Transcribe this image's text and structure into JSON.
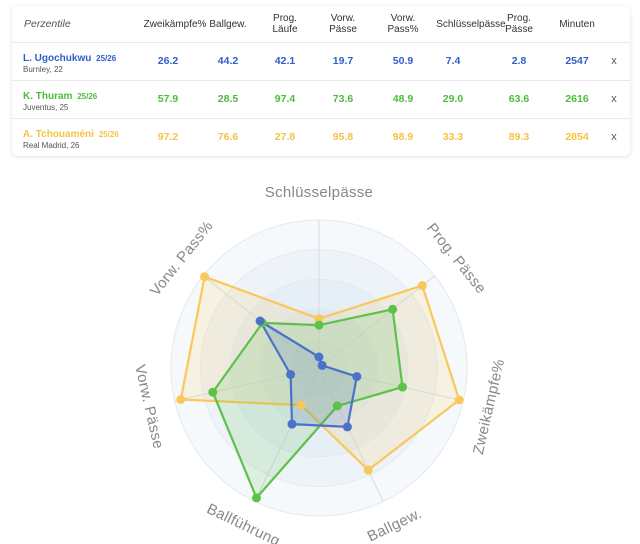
{
  "table": {
    "header_first": "Perzentile",
    "columns": [
      "Zweikämpfe%",
      "Ballgew.",
      "Prog.\nLäufe",
      "Vorw.\nPässe",
      "Vorw.\nPass%",
      "Schlüsselpässe",
      "Prog.\nPässe",
      "Minuten"
    ],
    "remove_label": "x",
    "rows": [
      {
        "name": "L. Ugochukwu",
        "season": "25/26",
        "meta": "Burnley, 22",
        "color": "#2f5fc8",
        "values": [
          "26.2",
          "44.2",
          "42.1",
          "19.7",
          "50.9",
          "7.4",
          "2.8",
          "2547"
        ]
      },
      {
        "name": "K. Thuram",
        "season": "25/26",
        "meta": "Juventus, 25",
        "color": "#4cbc3c",
        "values": [
          "57.9",
          "28.5",
          "97.4",
          "73.6",
          "48.9",
          "29.0",
          "63.6",
          "2616"
        ]
      },
      {
        "name": "A. Tchouaméni",
        "season": "25/26",
        "meta": "Real Madrid, 26",
        "color": "#f6c244",
        "values": [
          "97.2",
          "76.6",
          "27.8",
          "95.8",
          "98.9",
          "33.3",
          "89.3",
          "2854"
        ]
      }
    ]
  },
  "chart_data": {
    "type": "radar",
    "axes": [
      "Schlüsselpässe",
      "Prog. Pässe",
      "Zweikämpfe%",
      "Ballgew.",
      "Ballführung",
      "Vorw. Pässe",
      "Vorw. Pass%"
    ],
    "range": [
      0,
      100
    ],
    "series": [
      {
        "name": "L. Ugochukwu",
        "color": "#4a72c9",
        "values": [
          7.4,
          2.8,
          26.2,
          44.2,
          42.1,
          19.7,
          50.9
        ]
      },
      {
        "name": "K. Thuram",
        "color": "#5cc24a",
        "values": [
          29.0,
          63.6,
          57.9,
          28.5,
          97.4,
          73.6,
          48.9
        ]
      },
      {
        "name": "A. Tchouaméni",
        "color": "#f8c85a",
        "values": [
          33.3,
          89.3,
          97.2,
          76.6,
          27.8,
          95.8,
          98.9
        ]
      }
    ]
  }
}
